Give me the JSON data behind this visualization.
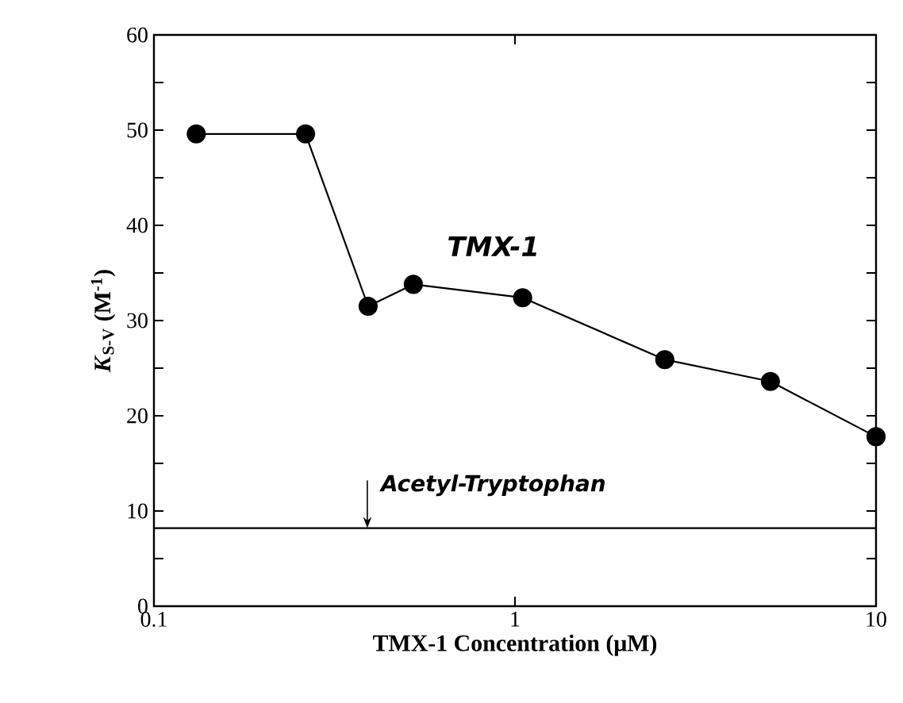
{
  "chart_data": {
    "type": "line",
    "xlabel": "TMX-1 Concentration  (μM)",
    "ylabel": "*K*$_{S-V}$ (M$^{-1}$)",
    "log": "x",
    "xlim": [
      0.1,
      10
    ],
    "xticks": [
      {
        "value": 0.1,
        "label": "0.1"
      },
      1,
      10
    ],
    "ylim": [
      0,
      60
    ],
    "yticks": [
      0,
      {
        "value": 5,
        "label": null
      },
      10,
      {
        "value": 15,
        "label": null
      },
      20,
      {
        "value": 25,
        "label": null
      },
      30,
      {
        "value": 35,
        "label": null
      },
      40,
      {
        "value": 45,
        "label": null
      },
      50,
      {
        "value": 55,
        "label": null
      },
      60
    ],
    "marker": "circle",
    "line_style": "solid",
    "grid": false,
    "legend": false,
    "series": [
      {
        "name": "TMX-1",
        "color": "#000000",
        "x": [
          0.131,
          0.263,
          0.392,
          0.523,
          1.05,
          2.6,
          5.1,
          10
        ],
        "values": [
          49.6,
          49.6,
          31.5,
          33.8,
          32.4,
          25.9,
          23.6,
          17.8
        ]
      }
    ],
    "ref_lines": [
      {
        "axis": "y",
        "value": 8.2,
        "color": "#000000",
        "line_style": "solid"
      }
    ],
    "annotations": [
      {
        "text": "Acetyl-Tryptophan",
        "x": 0.39,
        "y": 8.2
      }
    ]
  }
}
